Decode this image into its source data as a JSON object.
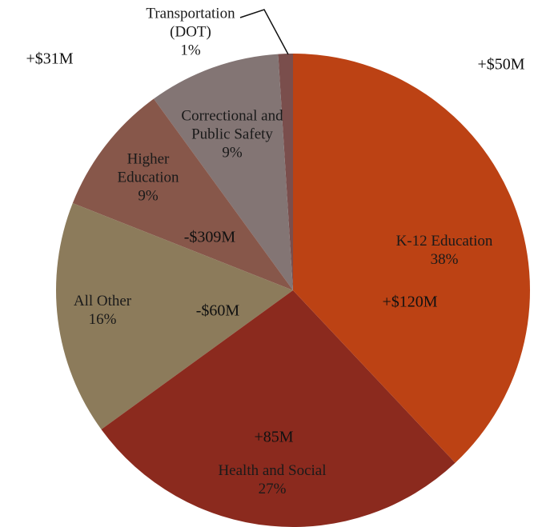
{
  "chart_data": {
    "type": "pie",
    "categories": [
      "K-12 Education",
      "Health and Social",
      "All Other",
      "Higher Education",
      "Correctional and Public Safety",
      "Transportation (DOT)"
    ],
    "values": [
      38,
      27,
      16,
      9,
      9,
      1
    ],
    "value_labels": [
      "38%",
      "27%",
      "16%",
      "9%",
      "9%",
      "1%"
    ],
    "colors": [
      "#bc4214",
      "#8b2a1e",
      "#8c7b5b",
      "#87574a",
      "#837574",
      "#7a4e4c"
    ],
    "annotations": [
      "+$50M",
      "+$31M",
      "+$120M",
      "-$309M",
      "-$60M",
      "+85M"
    ]
  }
}
